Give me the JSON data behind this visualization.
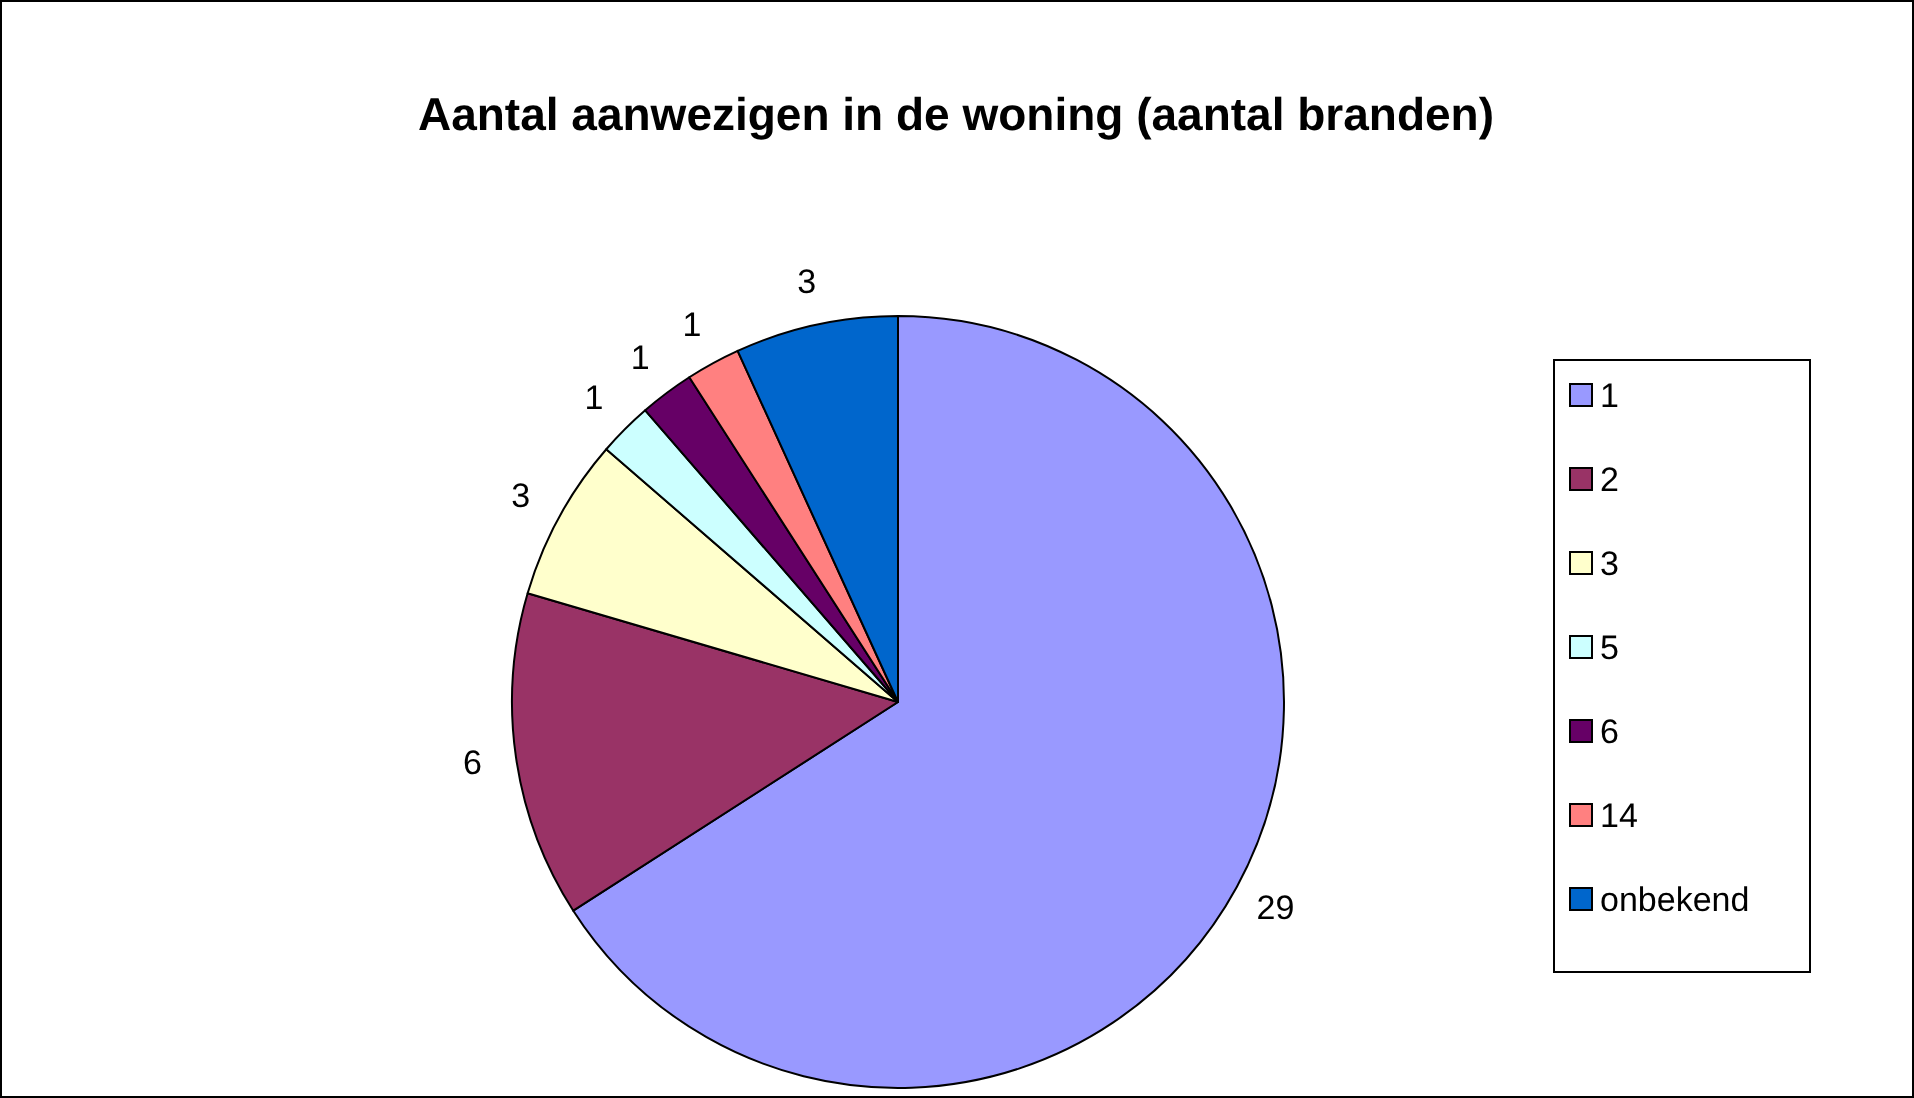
{
  "chart_data": {
    "type": "pie",
    "title": "Aantal aanwezigen in de woning (aantal branden)",
    "categories": [
      "1",
      "2",
      "3",
      "5",
      "6",
      "14",
      "onbekend"
    ],
    "values": [
      29,
      6,
      3,
      1,
      1,
      1,
      3
    ],
    "colors": [
      "#9999ff",
      "#993366",
      "#ffffcc",
      "#ccffff",
      "#660066",
      "#ff8080",
      "#0066cc"
    ],
    "data_labels": true,
    "legend": "right"
  }
}
